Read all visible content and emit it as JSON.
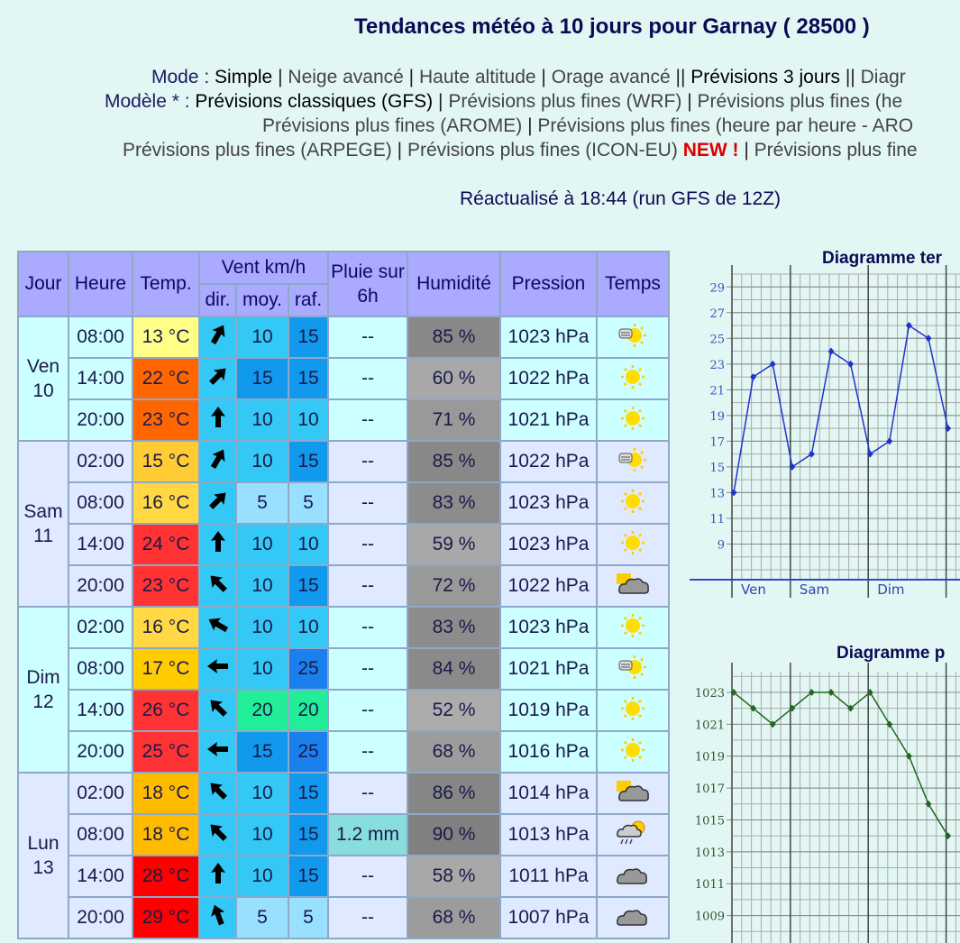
{
  "header": {
    "title": "Tendances météo à 10 jours pour Garnay ( 28500 )"
  },
  "nav": {
    "mode": [
      "Mode :",
      "Simple",
      "|",
      "Neige avancé",
      "|",
      "Haute altitude",
      "|",
      "Orage avancé",
      "||",
      "Prévisions 3 jours",
      "||",
      "Diagr"
    ],
    "model_1": [
      "Modèle * :",
      "Prévisions classiques (GFS)",
      "|",
      "Prévisions plus fines (WRF)",
      "|",
      "Prévisions plus fines (he"
    ],
    "model_2": [
      "Prévisions plus fines (AROME)",
      "|",
      "Prévisions plus fines (heure par heure - ARO"
    ],
    "model_3": [
      "Prévisions plus fines (ARPEGE)",
      "|",
      "Prévisions plus fines (ICON-EU)",
      "NEW !",
      "|",
      "Prévisions plus fine"
    ]
  },
  "updated": "Réactualisé à 18:44 (run GFS de 12Z)",
  "table": {
    "header": {
      "day": "Jour",
      "time": "Heure",
      "temp": "Temp.",
      "wind": "Vent km/h",
      "dir": "dir.",
      "moy": "moy.",
      "raf": "raf.",
      "rain": "Pluie sur 6h",
      "humidity": "Humidité",
      "pressure": "Pression",
      "weather": "Temps"
    },
    "days": [
      {
        "day": "Ven 10",
        "background": "#ccffff",
        "rows": [
          {
            "time": "08:00",
            "temp": "13 °C",
            "temp_color": "#ffff88",
            "dir": 30,
            "moy": 10,
            "moy_color": "#33c8f5",
            "raf": 15,
            "raf_color": "#1199ee",
            "rain": "--",
            "humidity": "85 %",
            "humidity_color": "#888888",
            "pressure": "1023 hPa",
            "icon": "haze"
          },
          {
            "time": "14:00",
            "temp": "22 °C",
            "temp_color": "#ff6600",
            "dir": 45,
            "moy": 15,
            "moy_color": "#1199ee",
            "raf": 15,
            "raf_color": "#1199ee",
            "rain": "--",
            "humidity": "60 %",
            "humidity_color": "#a8a8a8",
            "pressure": "1022 hPa",
            "icon": "sun"
          },
          {
            "time": "20:00",
            "temp": "23 °C",
            "temp_color": "#ff6600",
            "dir": 0,
            "moy": 10,
            "moy_color": "#33c8f5",
            "raf": 10,
            "raf_color": "#33c8f5",
            "rain": "--",
            "humidity": "71 %",
            "humidity_color": "#999999",
            "pressure": "1021 hPa",
            "icon": "sun"
          }
        ]
      },
      {
        "day": "Sam 11",
        "background": "#dfe9ff",
        "rows": [
          {
            "time": "02:00",
            "temp": "15 °C",
            "temp_color": "#ffcc33",
            "dir": 30,
            "moy": 10,
            "moy_color": "#33c8f5",
            "raf": 15,
            "raf_color": "#1199ee",
            "rain": "--",
            "humidity": "85 %",
            "humidity_color": "#888888",
            "pressure": "1022 hPa",
            "icon": "haze"
          },
          {
            "time": "08:00",
            "temp": "16 °C",
            "temp_color": "#ffd844",
            "dir": 45,
            "moy": 5,
            "moy_color": "#99e0ff",
            "raf": 5,
            "raf_color": "#99e0ff",
            "rain": "--",
            "humidity": "83 %",
            "humidity_color": "#8c8c8c",
            "pressure": "1023 hPa",
            "icon": "sun"
          },
          {
            "time": "14:00",
            "temp": "24 °C",
            "temp_color": "#ff3333",
            "dir": 0,
            "moy": 10,
            "moy_color": "#33c8f5",
            "raf": 10,
            "raf_color": "#33c8f5",
            "rain": "--",
            "humidity": "59 %",
            "humidity_color": "#a8a8a8",
            "pressure": "1023 hPa",
            "icon": "sun"
          },
          {
            "time": "20:00",
            "temp": "23 °C",
            "temp_color": "#ff3333",
            "dir": 315,
            "moy": 10,
            "moy_color": "#33c8f5",
            "raf": 15,
            "raf_color": "#1199ee",
            "rain": "--",
            "humidity": "72 %",
            "humidity_color": "#999999",
            "pressure": "1022 hPa",
            "icon": "cloudy-sun"
          }
        ]
      },
      {
        "day": "Dim 12",
        "background": "#ccffff",
        "rows": [
          {
            "time": "02:00",
            "temp": "16 °C",
            "temp_color": "#ffd844",
            "dir": 300,
            "moy": 10,
            "moy_color": "#33c8f5",
            "raf": 10,
            "raf_color": "#33c8f5",
            "rain": "--",
            "humidity": "83 %",
            "humidity_color": "#8c8c8c",
            "pressure": "1023 hPa",
            "icon": "sun"
          },
          {
            "time": "08:00",
            "temp": "17 °C",
            "temp_color": "#ffcc00",
            "dir": 270,
            "moy": 10,
            "moy_color": "#33c8f5",
            "raf": 25,
            "raf_color": "#1a80ee",
            "rain": "--",
            "humidity": "84 %",
            "humidity_color": "#8a8a8a",
            "pressure": "1021 hPa",
            "icon": "haze"
          },
          {
            "time": "14:00",
            "temp": "26 °C",
            "temp_color": "#ff3333",
            "dir": 315,
            "moy": 20,
            "moy_color": "#22ee99",
            "raf": 20,
            "raf_color": "#22ee99",
            "rain": "--",
            "humidity": "52 %",
            "humidity_color": "#acacac",
            "pressure": "1019 hPa",
            "icon": "sun"
          },
          {
            "time": "20:00",
            "temp": "25 °C",
            "temp_color": "#ff3333",
            "dir": 270,
            "moy": 15,
            "moy_color": "#1199ee",
            "raf": 25,
            "raf_color": "#1a80ee",
            "rain": "--",
            "humidity": "68 %",
            "humidity_color": "#9c9c9c",
            "pressure": "1016 hPa",
            "icon": "sun"
          }
        ]
      },
      {
        "day": "Lun 13",
        "background": "#dfe9ff",
        "rows": [
          {
            "time": "02:00",
            "temp": "18 °C",
            "temp_color": "#ffbb00",
            "dir": 315,
            "moy": 10,
            "moy_color": "#33c8f5",
            "raf": 15,
            "raf_color": "#1199ee",
            "rain": "--",
            "humidity": "86 %",
            "humidity_color": "#868686",
            "pressure": "1014 hPa",
            "icon": "cloudy-sun"
          },
          {
            "time": "08:00",
            "temp": "18 °C",
            "temp_color": "#ffbb00",
            "dir": 315,
            "moy": 10,
            "moy_color": "#33c8f5",
            "raf": 15,
            "raf_color": "#1199ee",
            "rain": "1.2 mm",
            "rain_color": "#88dddd",
            "humidity": "90 %",
            "humidity_color": "#808080",
            "pressure": "1013 hPa",
            "icon": "storm"
          },
          {
            "time": "14:00",
            "temp": "28 °C",
            "temp_color": "#ff0000",
            "dir": 0,
            "moy": 10,
            "moy_color": "#33c8f5",
            "raf": 15,
            "raf_color": "#1199ee",
            "rain": "--",
            "humidity": "58 %",
            "humidity_color": "#a8a8a8",
            "pressure": "1011 hPa",
            "icon": "cloudy"
          },
          {
            "time": "20:00",
            "temp": "29 °C",
            "temp_color": "#ff0000",
            "dir": 340,
            "moy": 5,
            "moy_color": "#99e0ff",
            "raf": 5,
            "raf_color": "#99e0ff",
            "rain": "--",
            "humidity": "68 %",
            "humidity_color": "#9c9c9c",
            "pressure": "1007 hPa",
            "icon": "cloudy"
          }
        ]
      }
    ]
  },
  "chart_data": [
    {
      "type": "line",
      "title": "Diagramme ter",
      "categories": [
        "Ven",
        null,
        null,
        "Sam",
        null,
        null,
        null,
        "Dim",
        null,
        null,
        null,
        null
      ],
      "values": [
        13,
        22,
        23,
        15,
        16,
        24,
        23,
        16,
        17,
        26,
        25,
        18
      ],
      "color": "#2233cc",
      "label_color": "#3355bb",
      "ylim": [
        7,
        30
      ],
      "yticks": [
        9,
        11,
        13,
        15,
        17,
        19,
        21,
        23,
        25,
        27,
        29
      ],
      "grid": true
    },
    {
      "type": "line",
      "title": "Diagramme p",
      "categories": [
        null,
        null,
        null,
        null,
        null,
        null,
        null,
        null,
        null,
        null,
        null,
        null
      ],
      "values": [
        1023,
        1022,
        1021,
        1022,
        1023,
        1023,
        1022,
        1023,
        1021,
        1019,
        1016,
        1014
      ],
      "color": "#226622",
      "label_color": "#335533",
      "ylim": [
        1007,
        1024.3
      ],
      "yticks": [
        1009,
        1011,
        1013,
        1015,
        1017,
        1019,
        1021,
        1023
      ],
      "grid": true
    }
  ]
}
